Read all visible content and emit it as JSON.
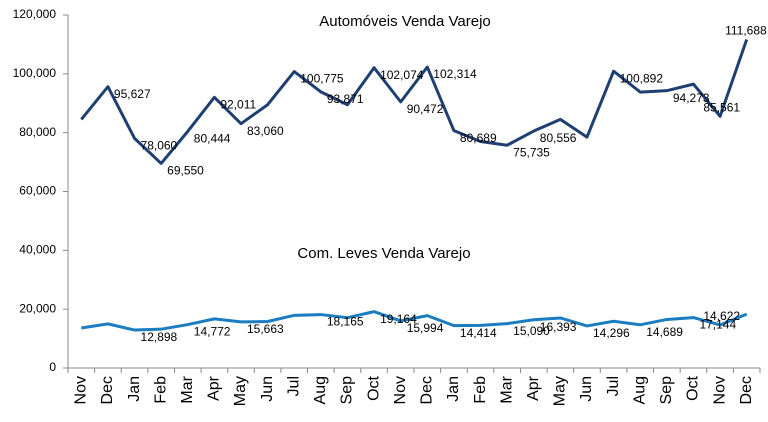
{
  "chart_data": {
    "type": "line",
    "categories": [
      "Nov",
      "Dec",
      "Jan",
      "Feb",
      "Mar",
      "Apr",
      "May",
      "Jun",
      "Jul",
      "Aug",
      "Sep",
      "Oct",
      "Nov",
      "Dec",
      "Jan",
      "Feb",
      "Mar",
      "Apr",
      "May",
      "Jun",
      "Jul",
      "Aug",
      "Sep",
      "Oct",
      "Nov",
      "Dec"
    ],
    "series": [
      {
        "name": "Automóveis Venda Varejo",
        "color": "#1f3f73",
        "values": [
          84500,
          95627,
          78060,
          69550,
          80444,
          92011,
          83060,
          89500,
          100775,
          93871,
          89500,
          102074,
          90472,
          102314,
          80689,
          77000,
          75735,
          80556,
          84500,
          78500,
          100892,
          93800,
          94273,
          96500,
          85561,
          111688
        ],
        "value_labels": [
          null,
          "95,627",
          "78,060",
          "69,550",
          "80,444",
          "92,011",
          "83,060",
          null,
          "100,775",
          "93,871",
          null,
          "102,074",
          "90,472",
          "102,314",
          "80,689",
          null,
          "75,735",
          "80,556",
          null,
          null,
          "100,892",
          null,
          "94,273",
          null,
          "85,561",
          "111,688"
        ]
      },
      {
        "name": "Com. Leves Venda Varejo",
        "color": "#1a7cc1",
        "values": [
          13600,
          15000,
          12898,
          13200,
          14772,
          16700,
          15663,
          15800,
          17900,
          18165,
          17100,
          19164,
          15994,
          17800,
          14414,
          14500,
          15090,
          16393,
          17000,
          14296,
          15900,
          14689,
          16500,
          17144,
          14622,
          18300
        ],
        "value_labels": [
          null,
          null,
          "12,898",
          null,
          "14,772",
          null,
          "15,663",
          null,
          null,
          "18,165",
          null,
          "19,164",
          "15,994",
          null,
          "14,414",
          null,
          "15,090",
          "16,393",
          null,
          "14,296",
          null,
          "14,689",
          null,
          "17,144",
          "14,622",
          null
        ]
      }
    ],
    "ylim": [
      0,
      120000
    ],
    "yticks": [
      0,
      {
        "value": 20000,
        "label": "20,000"
      },
      {
        "value": 40000,
        "label": "40,000"
      },
      {
        "value": 60000,
        "label": "60,000"
      },
      {
        "value": 80000,
        "label": "80,000"
      },
      {
        "value": 100000,
        "label": "100,000"
      },
      {
        "value": 120000,
        "label": "120,000"
      }
    ],
    "grid": false
  }
}
